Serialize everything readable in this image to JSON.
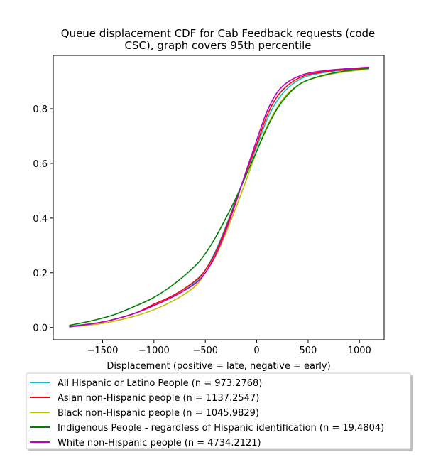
{
  "chart_data": {
    "type": "line",
    "title_lines": [
      "Queue displacement CDF for Cab Feedback  requests (code",
      "CSC), graph covers 95th percentile"
    ],
    "xlabel": "Displacement (positive = late, negative = early)",
    "ylabel": "",
    "xlim": [
      -1980,
      1240
    ],
    "ylim": [
      -0.045,
      0.995
    ],
    "x_ticks": [
      -1500,
      -1000,
      -500,
      0,
      500,
      1000
    ],
    "x_tick_labels": [
      "−1500",
      "−1000",
      "−500",
      "0",
      "500",
      "1000"
    ],
    "y_ticks": [
      0.0,
      0.2,
      0.4,
      0.6,
      0.8
    ],
    "y_tick_labels": [
      "0.0",
      "0.2",
      "0.4",
      "0.6",
      "0.8"
    ],
    "grid": false,
    "legend_position": "below",
    "series": [
      {
        "name": "All Hispanic or Latino People (n = 973.2768)",
        "color": "#17becf",
        "points": [
          [
            -1820,
            0.005
          ],
          [
            -1500,
            0.02
          ],
          [
            -1200,
            0.05
          ],
          [
            -1000,
            0.08
          ],
          [
            -800,
            0.115
          ],
          [
            -600,
            0.165
          ],
          [
            -500,
            0.21
          ],
          [
            -400,
            0.28
          ],
          [
            -300,
            0.37
          ],
          [
            -200,
            0.47
          ],
          [
            -100,
            0.57
          ],
          [
            0,
            0.66
          ],
          [
            100,
            0.76
          ],
          [
            200,
            0.83
          ],
          [
            300,
            0.875
          ],
          [
            400,
            0.903
          ],
          [
            500,
            0.92
          ],
          [
            700,
            0.935
          ],
          [
            900,
            0.943
          ],
          [
            1090,
            0.948
          ]
        ]
      },
      {
        "name": "Asian non-Hispanic people (n = 1137.2547)",
        "color": "#ff0000",
        "points": [
          [
            -1820,
            0.003
          ],
          [
            -1500,
            0.02
          ],
          [
            -1200,
            0.05
          ],
          [
            -1000,
            0.085
          ],
          [
            -800,
            0.12
          ],
          [
            -600,
            0.17
          ],
          [
            -500,
            0.21
          ],
          [
            -400,
            0.275
          ],
          [
            -300,
            0.365
          ],
          [
            -200,
            0.465
          ],
          [
            -100,
            0.57
          ],
          [
            0,
            0.67
          ],
          [
            100,
            0.775
          ],
          [
            200,
            0.845
          ],
          [
            300,
            0.885
          ],
          [
            400,
            0.91
          ],
          [
            500,
            0.925
          ],
          [
            700,
            0.937
          ],
          [
            900,
            0.945
          ],
          [
            1090,
            0.95
          ]
        ]
      },
      {
        "name": "Black non-Hispanic people (n = 1045.9829)",
        "color": "#bfbf00",
        "points": [
          [
            -1820,
            0.002
          ],
          [
            -1500,
            0.015
          ],
          [
            -1200,
            0.04
          ],
          [
            -1000,
            0.065
          ],
          [
            -800,
            0.1
          ],
          [
            -600,
            0.15
          ],
          [
            -500,
            0.2
          ],
          [
            -400,
            0.26
          ],
          [
            -300,
            0.345
          ],
          [
            -200,
            0.44
          ],
          [
            -100,
            0.54
          ],
          [
            0,
            0.645
          ],
          [
            100,
            0.735
          ],
          [
            200,
            0.805
          ],
          [
            300,
            0.855
          ],
          [
            400,
            0.885
          ],
          [
            500,
            0.905
          ],
          [
            700,
            0.925
          ],
          [
            900,
            0.937
          ],
          [
            1090,
            0.945
          ]
        ]
      },
      {
        "name": "Indigenous People - regardless of Hispanic identification (n = 19.4804)",
        "color": "#008000",
        "points": [
          [
            -1820,
            0.008
          ],
          [
            -1600,
            0.025
          ],
          [
            -1400,
            0.045
          ],
          [
            -1200,
            0.075
          ],
          [
            -1000,
            0.11
          ],
          [
            -800,
            0.16
          ],
          [
            -600,
            0.225
          ],
          [
            -500,
            0.27
          ],
          [
            -400,
            0.33
          ],
          [
            -300,
            0.4
          ],
          [
            -200,
            0.475
          ],
          [
            -100,
            0.56
          ],
          [
            0,
            0.645
          ],
          [
            100,
            0.73
          ],
          [
            200,
            0.8
          ],
          [
            300,
            0.85
          ],
          [
            400,
            0.885
          ],
          [
            500,
            0.905
          ],
          [
            700,
            0.927
          ],
          [
            900,
            0.94
          ],
          [
            1090,
            0.948
          ]
        ]
      },
      {
        "name": "White non-Hispanic people (n = 4734.2121)",
        "color": "#bf00bf",
        "points": [
          [
            -1820,
            0.002
          ],
          [
            -1500,
            0.02
          ],
          [
            -1200,
            0.05
          ],
          [
            -1000,
            0.08
          ],
          [
            -800,
            0.115
          ],
          [
            -600,
            0.16
          ],
          [
            -500,
            0.2
          ],
          [
            -400,
            0.265
          ],
          [
            -300,
            0.355
          ],
          [
            -200,
            0.46
          ],
          [
            -100,
            0.575
          ],
          [
            0,
            0.685
          ],
          [
            100,
            0.79
          ],
          [
            200,
            0.86
          ],
          [
            300,
            0.897
          ],
          [
            400,
            0.917
          ],
          [
            500,
            0.93
          ],
          [
            700,
            0.941
          ],
          [
            900,
            0.947
          ],
          [
            1090,
            0.952
          ]
        ]
      }
    ]
  }
}
